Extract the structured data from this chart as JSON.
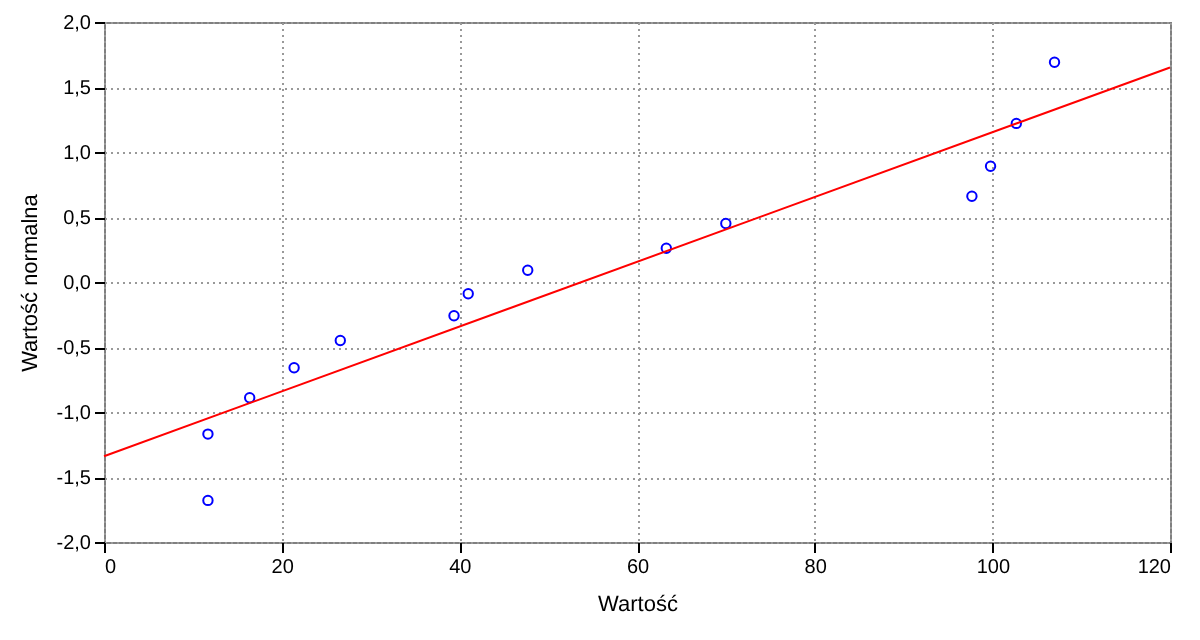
{
  "chart_data": {
    "type": "scatter",
    "xlabel": "Wartość",
    "ylabel": "Wartość normalna",
    "grid": true,
    "xlim": [
      0,
      120
    ],
    "xticks": [
      0,
      20,
      40,
      60,
      80,
      100,
      120
    ],
    "ylim": [
      -2,
      2
    ],
    "yticks": [
      {
        "value": -2,
        "label": "-2,0"
      },
      {
        "value": -1.5,
        "label": "-1,5"
      },
      {
        "value": -1,
        "label": "-1,0"
      },
      {
        "value": -0.5,
        "label": "-0,5"
      },
      {
        "value": 0,
        "label": "0,0"
      },
      {
        "value": 0.5,
        "label": "0,5"
      },
      {
        "value": 1,
        "label": "1,0"
      },
      {
        "value": 1.5,
        "label": "1,5"
      },
      {
        "value": 2,
        "label": "2,0"
      }
    ],
    "series": [
      {
        "type": "scatter",
        "marker": "circle",
        "color": "#0000ff",
        "x": [
          11.7,
          11.7,
          16.4,
          21.4,
          26.6,
          39.4,
          41.0,
          47.7,
          63.3,
          70.0,
          97.7,
          99.8,
          102.7,
          107.0
        ],
        "values": [
          -1.17,
          -1.68,
          -0.89,
          -0.66,
          -0.45,
          -0.26,
          -0.09,
          0.09,
          0.26,
          0.45,
          0.66,
          0.89,
          1.22,
          1.69
        ]
      },
      {
        "type": "line",
        "color": "#ff0000",
        "x": [
          0,
          120
        ],
        "values": [
          -1.34,
          1.65
        ]
      }
    ]
  }
}
